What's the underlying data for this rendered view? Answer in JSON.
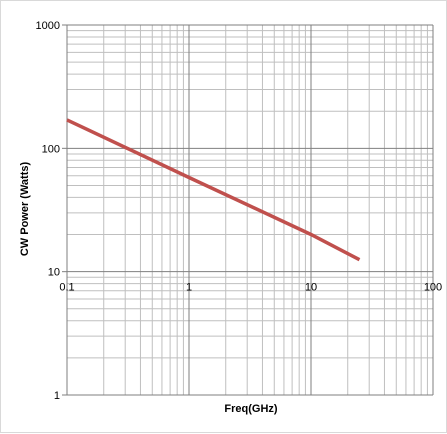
{
  "chart_data": {
    "type": "line",
    "title": "",
    "xlabel": "Freq(GHz)",
    "ylabel": "CW Power (Watts)",
    "x_scale": "log",
    "y_scale": "log",
    "xlim": [
      0.1,
      100
    ],
    "ylim": [
      1,
      1000
    ],
    "grid": true,
    "x_ticks": [
      "0.1",
      "1",
      "10",
      "100"
    ],
    "y_ticks": [
      "1000",
      "100",
      "10",
      "1"
    ],
    "series": [
      {
        "color": "#c0504d",
        "x": [
          0.1,
          1,
          10,
          25
        ],
        "y": [
          170,
          58,
          20,
          12.5
        ]
      }
    ]
  }
}
